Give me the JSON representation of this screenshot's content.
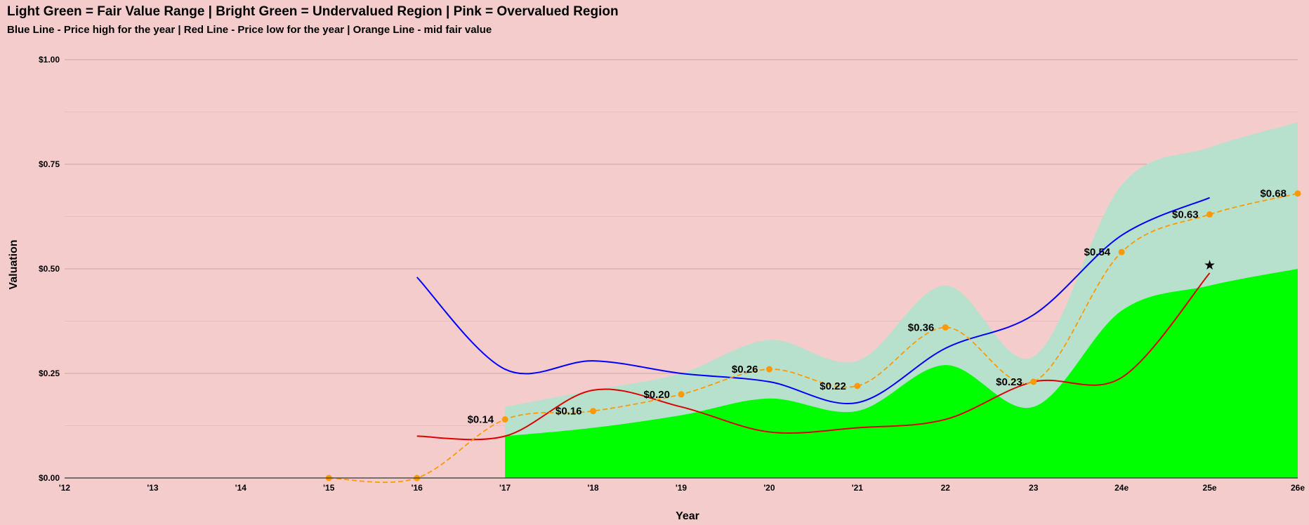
{
  "title": "Light Green = Fair Value Range | Bright Green = Undervalued Region | Pink = Overvalued Region",
  "subtitle": "Blue Line - Price high for the year | Red Line - Price low for the year | Orange Line - mid fair value",
  "colors": {
    "background": "#f4cccc",
    "fair_value_range": "#b7e1cd",
    "undervalued": "#00ff00",
    "price_high": "#0000ff",
    "price_low": "#dd0000",
    "mid_fair_value": "#ff9900",
    "gridline": "#c8a4a4"
  },
  "chart_data": {
    "type": "line",
    "xlabel": "Year",
    "ylabel": "Valuation",
    "ylim": [
      0,
      1
    ],
    "y_ticks": [
      "$0.00",
      "$0.25",
      "$0.50",
      "$0.75",
      "$1.00"
    ],
    "categories": [
      "'12",
      "'13",
      "'14",
      "'15",
      "'16",
      "'17",
      "'18",
      "'19",
      "'20",
      "'21",
      "22",
      "23",
      "24e",
      "25e",
      "26e"
    ],
    "grid": true,
    "series": [
      {
        "name": "Price high for the year",
        "style": "solid",
        "color": "#0000ff",
        "values": [
          null,
          null,
          null,
          null,
          0.48,
          0.26,
          0.28,
          0.25,
          0.23,
          0.18,
          0.31,
          0.39,
          0.58,
          0.67,
          null
        ]
      },
      {
        "name": "Price low for the year",
        "style": "solid",
        "color": "#dd0000",
        "values": [
          null,
          null,
          null,
          null,
          0.1,
          0.1,
          0.21,
          0.17,
          0.11,
          0.12,
          0.14,
          0.23,
          0.24,
          0.49,
          null
        ]
      },
      {
        "name": "mid fair value",
        "style": "dashed",
        "color": "#ff9900",
        "values": [
          null,
          null,
          null,
          0.0,
          0.0,
          0.14,
          0.16,
          0.2,
          0.26,
          0.22,
          0.36,
          0.23,
          0.54,
          0.63,
          0.68
        ],
        "labels": [
          null,
          null,
          null,
          null,
          null,
          "$0.14",
          "$0.16",
          "$0.20",
          "$0.26",
          "$0.22",
          "$0.36",
          "$0.23",
          "$0.54",
          "$0.63",
          "$0.68"
        ]
      }
    ],
    "areas": [
      {
        "name": "Fair Value Range",
        "color": "#b7e1cd",
        "values": [
          null,
          null,
          null,
          null,
          null,
          0.17,
          0.21,
          0.25,
          0.33,
          0.28,
          0.46,
          0.29,
          0.7,
          0.79,
          0.85
        ]
      },
      {
        "name": "Undervalued Region",
        "color": "#00ff00",
        "values": [
          null,
          null,
          null,
          null,
          null,
          0.1,
          0.12,
          0.15,
          0.19,
          0.16,
          0.27,
          0.17,
          0.4,
          0.46,
          0.5
        ]
      }
    ],
    "marker": {
      "symbol": "★",
      "x": "25e",
      "y": 0.51
    }
  }
}
